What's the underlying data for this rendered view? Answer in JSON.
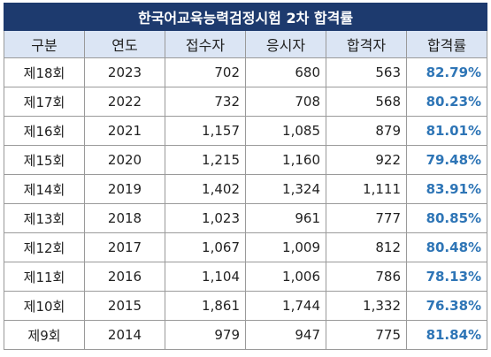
{
  "title": "한국어교육능력검정시험 2차 합격률",
  "headers": [
    "구분",
    "연도",
    "접수자",
    "응시자",
    "합격자",
    "합격률"
  ],
  "rows": [
    {
      "session": "제18회",
      "year": "2023",
      "applicants": "702",
      "examinees": "680",
      "passers": "563",
      "rate": "82.79%"
    },
    {
      "session": "제17회",
      "year": "2022",
      "applicants": "732",
      "examinees": "708",
      "passers": "568",
      "rate": "80.23%"
    },
    {
      "session": "제16회",
      "year": "2021",
      "applicants": "1,157",
      "examinees": "1,085",
      "passers": "879",
      "rate": "81.01%"
    },
    {
      "session": "제15회",
      "year": "2020",
      "applicants": "1,215",
      "examinees": "1,160",
      "passers": "922",
      "rate": "79.48%"
    },
    {
      "session": "제14회",
      "year": "2019",
      "applicants": "1,402",
      "examinees": "1,324",
      "passers": "1,111",
      "rate": "83.91%"
    },
    {
      "session": "제13회",
      "year": "2018",
      "applicants": "1,023",
      "examinees": "961",
      "passers": "777",
      "rate": "80.85%"
    },
    {
      "session": "제12회",
      "year": "2017",
      "applicants": "1,067",
      "examinees": "1,009",
      "passers": "812",
      "rate": "80.48%"
    },
    {
      "session": "제11회",
      "year": "2016",
      "applicants": "1,104",
      "examinees": "1,006",
      "passers": "786",
      "rate": "78.13%"
    },
    {
      "session": "제10회",
      "year": "2015",
      "applicants": "1,861",
      "examinees": "1,744",
      "passers": "1,332",
      "rate": "76.38%"
    },
    {
      "session": "제9회",
      "year": "2014",
      "applicants": "979",
      "examinees": "947",
      "passers": "775",
      "rate": "81.84%"
    }
  ],
  "colors": {
    "title_bg": "#1d3a6e",
    "header_bg": "#dbe5f4",
    "rate_text": "#2e75b6"
  }
}
